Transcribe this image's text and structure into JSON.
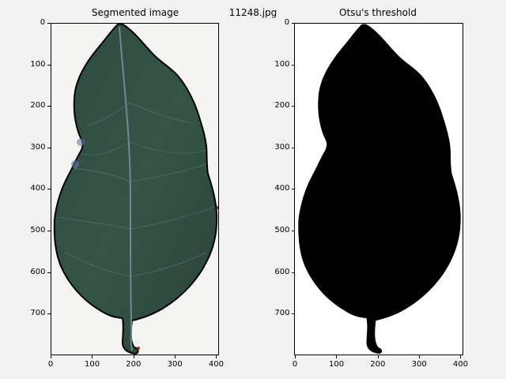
{
  "figure": {
    "filename": "11248.jpg",
    "background": "#f2f2f2"
  },
  "left_panel": {
    "title": "Segmented image",
    "x_ticks": [
      "0",
      "100",
      "200",
      "300",
      "400"
    ],
    "y_ticks": [
      "0",
      "100",
      "200",
      "300",
      "400",
      "500",
      "600",
      "700"
    ],
    "leaf_color": "#2f4a3e",
    "outline_color": "#000000"
  },
  "right_panel": {
    "title": "Otsu's threshold",
    "x_ticks": [
      "0",
      "100",
      "200",
      "300",
      "400"
    ],
    "y_ticks": [
      "0",
      "100",
      "200",
      "300",
      "400",
      "500",
      "600",
      "700"
    ],
    "mask_color": "#000000"
  }
}
